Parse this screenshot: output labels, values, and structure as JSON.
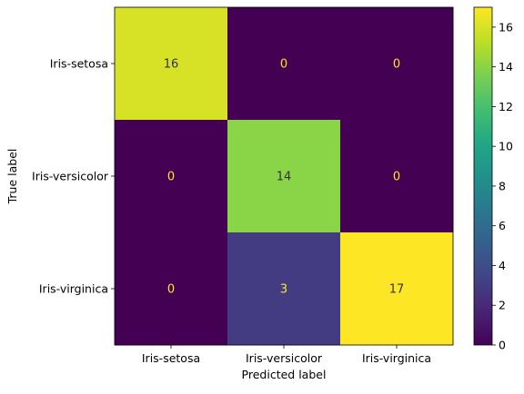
{
  "chart_data": {
    "type": "heatmap",
    "title": "",
    "xlabel": "Predicted label",
    "ylabel": "True label",
    "x_categories": [
      "Iris-setosa",
      "Iris-versicolor",
      "Iris-virginica"
    ],
    "y_categories": [
      "Iris-setosa",
      "Iris-versicolor",
      "Iris-virginica"
    ],
    "values": [
      [
        16,
        0,
        0
      ],
      [
        0,
        14,
        0
      ],
      [
        0,
        3,
        17
      ]
    ],
    "colormap": "viridis",
    "colorbar": {
      "range": [
        0,
        17
      ],
      "ticks": [
        0,
        2,
        4,
        6,
        8,
        10,
        12,
        14,
        16
      ]
    },
    "text_color_dark_cells": "#fde725",
    "text_color_light_cells": "#333333"
  }
}
